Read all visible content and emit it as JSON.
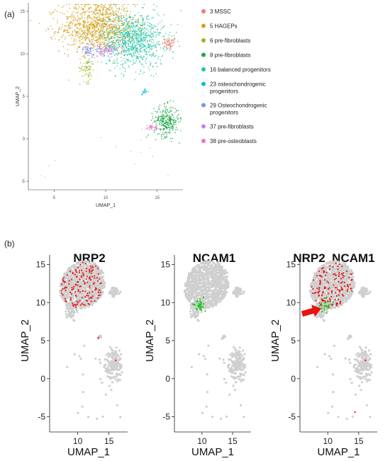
{
  "panel_a_label": "(a)",
  "panel_b_label": "(b)",
  "chart_data": [
    {
      "type": "scatter",
      "panel": "(a)",
      "title": "",
      "xlabel": "UMAP_1",
      "ylabel": "UMAP_2",
      "xlim": [
        2.5,
        17.5
      ],
      "ylim": [
        -6,
        16
      ],
      "x_ticks": [
        "5",
        "10",
        "15"
      ],
      "y_ticks": [
        "15",
        "10",
        "5",
        "0",
        "-5"
      ],
      "grid": false,
      "legend_position": "right",
      "series": [
        {
          "name": "3 MSSC",
          "color": "#F07A69",
          "center": [
            16.2,
            11.2
          ],
          "spread": [
            0.35,
            0.4
          ],
          "count": 60
        },
        {
          "name": "5 HAGEPs",
          "color": "#D4A017",
          "center": [
            9.2,
            13.2
          ],
          "spread": [
            1.8,
            1.5
          ],
          "count": 1100
        },
        {
          "name": "6 pre-fibroblasts",
          "color": "#A5B320",
          "center": [
            8.2,
            8.3
          ],
          "spread": [
            0.35,
            0.8
          ],
          "count": 70
        },
        {
          "name": "8 pre-fibroblasts",
          "color": "#1FA84A",
          "center": [
            15.9,
            2.1
          ],
          "spread": [
            0.6,
            0.9
          ],
          "count": 300
        },
        {
          "name": "16 balanced progenitors",
          "color": "#23C4A6",
          "center": [
            12.7,
            11.6
          ],
          "spread": [
            1.5,
            1.6
          ],
          "count": 950
        },
        {
          "name": "23 osteochondrogenic progenitors",
          "color": "#19B5D4",
          "center": [
            13.7,
            5.5
          ],
          "spread": [
            0.15,
            0.2
          ],
          "count": 20
        },
        {
          "name": "29 Osteochondrogenic progenitors",
          "color": "#7B93E6",
          "center": [
            8.4,
            10.4
          ],
          "spread": [
            0.45,
            0.4
          ],
          "count": 60
        },
        {
          "name": "37 pre-fibroblasts",
          "color": "#D07BEA",
          "center": [
            10.0,
            10.4
          ],
          "spread": [
            0.8,
            0.35
          ],
          "count": 90
        },
        {
          "name": "38 pre-osteoblasts",
          "color": "#F06FC8",
          "center": [
            14.4,
            1.3
          ],
          "spread": [
            0.45,
            0.2
          ],
          "count": 35
        }
      ],
      "legend": [
        "3 MSSC",
        "5 HAGEPs",
        "6 pre-fibroblasts",
        "8 pre-fibroblasts",
        "16 balanced progenitors",
        [
          "23 osteochondrogenic",
          "progenitors"
        ],
        [
          "29 Osteochondrogenic",
          "progenitors"
        ],
        "37 pre-fibroblasts",
        "38 pre-osteoblasts"
      ]
    },
    {
      "type": "scatter",
      "panel": "(b)",
      "title": "NRP2",
      "xlabel": "UMAP_1",
      "ylabel": "UMAP_2",
      "xlim": [
        5.5,
        18
      ],
      "ylim": [
        -7,
        17
      ],
      "x_ticks": [
        "10",
        "15"
      ],
      "y_ticks": [
        "15",
        "10",
        "5",
        "0",
        "-5"
      ],
      "background_color": "#CFCFCF",
      "highlights": [
        {
          "color": "#E31A1C",
          "region": "main",
          "count": 150
        },
        {
          "color": "#E31A1C",
          "region": "lower",
          "count": 4
        }
      ]
    },
    {
      "type": "scatter",
      "panel": "(b)",
      "title": "NCAM1",
      "xlabel": "UMAP_1",
      "ylabel": "UMAP_2",
      "xlim": [
        5.5,
        18
      ],
      "ylim": [
        -7,
        17
      ],
      "x_ticks": [
        "10",
        "15"
      ],
      "y_ticks": [
        "15",
        "10",
        "5",
        "0",
        "-5"
      ],
      "background_color": "#CFCFCF",
      "highlights": [
        {
          "color": "#22C322",
          "region": "ncam",
          "count": 35
        }
      ]
    },
    {
      "type": "scatter",
      "panel": "(b)",
      "title": "NRP2_NCAM1",
      "xlabel": "UMAP_1",
      "ylabel": "UMAP_2",
      "xlim": [
        5.5,
        18
      ],
      "ylim": [
        -7,
        17
      ],
      "x_ticks": [
        "10",
        "15"
      ],
      "y_ticks": [
        "15",
        "10",
        "5",
        "0",
        "-5"
      ],
      "background_color": "#CFCFCF",
      "highlights": [
        {
          "color": "#E31A1C",
          "region": "main",
          "count": 140
        },
        {
          "color": "#22C322",
          "region": "ncam",
          "count": 25
        },
        {
          "color": "#E31A1C",
          "region": "lower",
          "count": 4
        }
      ],
      "annotation": {
        "type": "arrow",
        "color": "#E8140E",
        "points_to": [
          9.3,
          9.5
        ]
      }
    }
  ]
}
